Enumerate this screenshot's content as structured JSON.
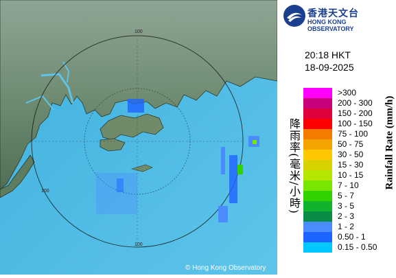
{
  "map": {
    "range_labels": {
      "north": "100",
      "west": "100",
      "south": "100"
    },
    "copyright": "© Hong Kong Observatory",
    "colors": {
      "sea": "#55b8e3",
      "land": "#5f7e62",
      "ring": "#000000"
    }
  },
  "header": {
    "org_name_zh": "香港天文台",
    "org_name_en": "HONG KONG OBSERVATORY",
    "time": "20:18 HKT",
    "date": "18-09-2025"
  },
  "legend": {
    "title_zh": "降雨率(毫米/小時)",
    "title_en": "Rainfall Rate (mm/h)",
    "items": [
      {
        "label": ">300",
        "color": "#ff00ff"
      },
      {
        "label": "200 - 300",
        "color": "#c8007a"
      },
      {
        "label": "150 - 200",
        "color": "#e0003c"
      },
      {
        "label": "100 - 150",
        "color": "#ff0000"
      },
      {
        "label": "75 - 100",
        "color": "#f57a00"
      },
      {
        "label": "50 - 75",
        "color": "#f5a300"
      },
      {
        "label": "30 - 50",
        "color": "#ffc800"
      },
      {
        "label": "15 - 30",
        "color": "#d8d200"
      },
      {
        "label": "10 - 15",
        "color": "#b4e600"
      },
      {
        "label": "7 - 10",
        "color": "#78e600"
      },
      {
        "label": "5 - 7",
        "color": "#32d200"
      },
      {
        "label": "3 - 5",
        "color": "#10b42c"
      },
      {
        "label": "2 - 3",
        "color": "#0a8c46"
      },
      {
        "label": "1 - 2",
        "color": "#4a8cff"
      },
      {
        "label": "0.50 - 1",
        "color": "#1e64ff"
      },
      {
        "label": "0.15 - 0.50",
        "color": "#00c8ff"
      }
    ]
  }
}
